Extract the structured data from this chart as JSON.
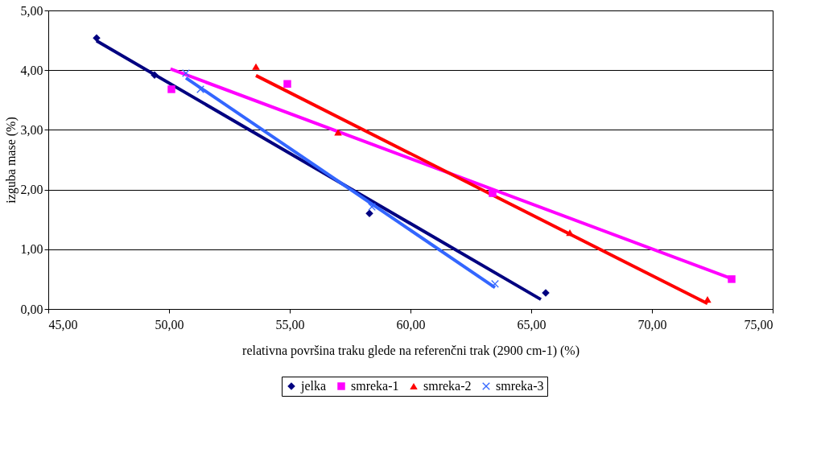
{
  "chart_data": {
    "type": "scatter",
    "xlabel": "relativna površina traku glede na referenčni trak (2900 cm-1) (%)",
    "ylabel": "izguba mase (%)",
    "xlim": [
      45,
      75
    ],
    "xticks": [
      {
        "value": 45,
        "label": "45,00"
      },
      {
        "value": 50,
        "label": "50,00"
      },
      {
        "value": 55,
        "label": "55,00"
      },
      {
        "value": 60,
        "label": "60,00"
      },
      {
        "value": 65,
        "label": "65,00"
      },
      {
        "value": 70,
        "label": "70,00"
      },
      {
        "value": 75,
        "label": "75,00"
      }
    ],
    "ylim": [
      0,
      5
    ],
    "yticks": [
      {
        "value": 0,
        "label": "0,00"
      },
      {
        "value": 1,
        "label": "1,00"
      },
      {
        "value": 2,
        "label": "2,00"
      },
      {
        "value": 3,
        "label": "3,00"
      },
      {
        "value": 4,
        "label": "4,00"
      },
      {
        "value": 5,
        "label": "5,00"
      }
    ],
    "grid": "y",
    "legend": "bottom",
    "series": [
      {
        "name": "jelka",
        "marker": "diamond",
        "color": "#000080",
        "x": [
          47.0,
          49.4,
          58.3,
          65.6
        ],
        "values": [
          4.54,
          3.92,
          1.6,
          0.27
        ]
      },
      {
        "name": "smreka-1",
        "marker": "square",
        "color": "#ff00ff",
        "x": [
          50.1,
          54.9,
          63.4,
          73.3
        ],
        "values": [
          3.68,
          3.77,
          1.94,
          0.5
        ]
      },
      {
        "name": "smreka-2",
        "marker": "triangle",
        "color": "#ff0000",
        "x": [
          53.6,
          57.0,
          66.6,
          72.3
        ],
        "values": [
          4.06,
          2.96,
          1.28,
          0.16
        ]
      },
      {
        "name": "smreka-3",
        "marker": "cross",
        "color": "#3366ff",
        "x": [
          50.7,
          51.3,
          58.4,
          63.5
        ],
        "values": [
          3.95,
          3.68,
          1.71,
          0.42
        ]
      },
      {
        "type": "line",
        "color": "#000080",
        "x": [
          47.0,
          65.4
        ],
        "values": [
          4.49,
          0.16
        ]
      },
      {
        "type": "line",
        "color": "#ff00ff",
        "x": [
          50.06,
          73.35
        ],
        "values": [
          4.02,
          0.5
        ]
      },
      {
        "type": "line",
        "color": "#ff0000",
        "x": [
          53.6,
          72.3
        ],
        "values": [
          3.91,
          0.09
        ]
      },
      {
        "type": "line",
        "color": "#3366ff",
        "x": [
          50.7,
          63.5
        ],
        "values": [
          3.87,
          0.36
        ]
      }
    ]
  }
}
